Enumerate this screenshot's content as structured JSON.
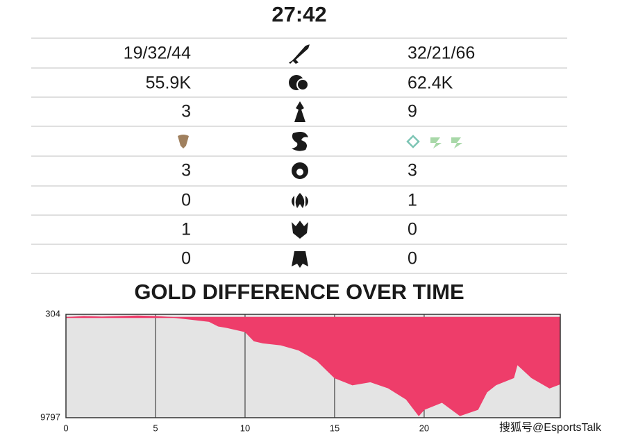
{
  "timer": "27:42",
  "stats": [
    {
      "left": "19/32/44",
      "right": "32/21/66"
    },
    {
      "left": "55.9K",
      "right": "62.4K"
    },
    {
      "left": "3",
      "right": "9"
    },
    {
      "left": "3",
      "right": "3"
    },
    {
      "left": "0",
      "right": "1"
    },
    {
      "left": "1",
      "right": "0"
    },
    {
      "left": "0",
      "right": "0"
    }
  ],
  "chart_data": {
    "type": "area",
    "title": "GOLD DIFFERENCE OVER TIME",
    "x": [
      0,
      1,
      2,
      3,
      4,
      5,
      6,
      7,
      8,
      8.5,
      9,
      10,
      10.5,
      11,
      12,
      13,
      14,
      15,
      16,
      17,
      18,
      19,
      19.7,
      20,
      21,
      22,
      23,
      23.5,
      24,
      25,
      25.2,
      26,
      27,
      27.6
    ],
    "values": [
      0,
      100,
      50,
      100,
      150,
      100,
      0,
      -200,
      -400,
      -850,
      -1000,
      -1400,
      -2300,
      -2500,
      -2700,
      -3200,
      -4200,
      -5900,
      -6600,
      -6300,
      -6900,
      -8000,
      -9600,
      -9000,
      -8300,
      -9600,
      -9000,
      -7300,
      -6600,
      -5900,
      -4600,
      -5900,
      -6900,
      -6500
    ],
    "color": "#ee3d6a",
    "xlim": [
      0,
      27.6
    ],
    "ylim": [
      -9797,
      304
    ],
    "xticks": [
      0,
      5,
      10,
      15,
      20
    ],
    "yticks": [
      304,
      {
        "value": -9797,
        "label": "9797"
      }
    ],
    "grid": true
  },
  "watermark": "搜狐号@EsportsTalk"
}
